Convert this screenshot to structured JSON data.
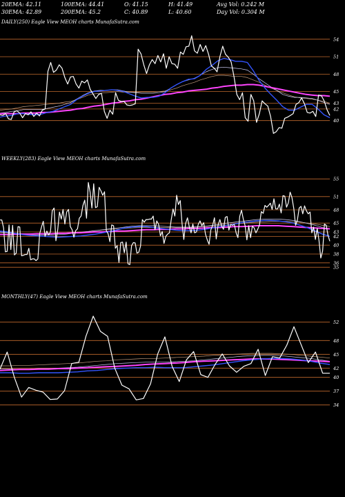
{
  "header": {
    "line1": [
      {
        "label": "20EMA: 42.11"
      },
      {
        "label": "100EMA: 44.41"
      },
      {
        "label": "O: 41.15"
      },
      {
        "label": "H: 41.49"
      },
      {
        "label": "Avg Vol: 0.242  M"
      }
    ],
    "line2": [
      {
        "label": "30EMA: 42.89"
      },
      {
        "label": "200EMA: 45.2"
      },
      {
        "label": "C: 40.89"
      },
      {
        "label": "L: 40.60"
      },
      {
        "label": "Day Vol: 0.304  M"
      }
    ]
  },
  "colors": {
    "background": "#000000",
    "price": "#ffffff",
    "ema_fast": "#3355ff",
    "ema_mid": "#d4d4ff",
    "ema_slow": "#c8a080",
    "ema_long": "#ff44ff",
    "gridline": "#c26a2e"
  },
  "chart_data": [
    {
      "type": "line",
      "title": "DAILY(250) Eagle  View  MEOH charts MunafaSutra.com",
      "ylim": [
        37,
        56
      ],
      "yticks": [
        54,
        51,
        48,
        45,
        43,
        42,
        40
      ],
      "series": [
        {
          "role": "price",
          "values": [
            41.0,
            40.9,
            41.2,
            40.3,
            40.2,
            41.5,
            41.7,
            41.3,
            40.5,
            41.2,
            41.0,
            41.5,
            40.7,
            41.3,
            40.8,
            41.8,
            42.0,
            48.5,
            50.0,
            48.3,
            48.7,
            49.6,
            49.0,
            47.4,
            46.3,
            47.5,
            47.6,
            46.3,
            45.6,
            46.8,
            46.5,
            47.0,
            45.4,
            44.6,
            43.8,
            44.5,
            44.7,
            41.6,
            40.4,
            41.8,
            41.1,
            44.8,
            43.5,
            43.3,
            43.3,
            42.7,
            42.6,
            42.7,
            42.9,
            52.3,
            51.5,
            49.6,
            48.1,
            49.6,
            50.5,
            49.8,
            51.2,
            50.1,
            51.5,
            49.0,
            51.0,
            49.8,
            49.7,
            49.0,
            51.8,
            51.4,
            52.7,
            52.8,
            54.6,
            52.0,
            51.6,
            53.1,
            51.9,
            52.9,
            51.4,
            49.4,
            49.0,
            48.4,
            51.0,
            52.8,
            51.4,
            50.9,
            50.1,
            47.6,
            44.5,
            43.6,
            44.8,
            40.5,
            39.9,
            44.5,
            43.4,
            39.7,
            41.2,
            43.4,
            42.9,
            42.5,
            40.7,
            37.8,
            38.1,
            38.8,
            38.7,
            40.4,
            40.6,
            40.9,
            41.2,
            42.8,
            43.1,
            43.9,
            42.9,
            41.4,
            41.3,
            41.6,
            40.7,
            44.4,
            44.3,
            43.4,
            41.9,
            40.9
          ]
        },
        {
          "role": "ema_fast",
          "values": [
            40.6,
            40.8,
            40.9,
            41.2,
            41.2,
            41.1,
            41.0,
            41.1,
            41.4,
            41.6,
            42.0,
            42.4,
            42.8,
            43.6,
            44.2,
            44.7,
            45.0,
            45.1,
            45.2,
            45.3,
            45.2,
            45.0,
            44.6,
            44.2,
            43.9,
            44.0,
            44.0,
            44.2,
            44.8,
            45.6,
            46.2,
            46.7,
            47.1,
            47.2,
            47.8,
            48.8,
            49.5,
            50.3,
            50.7,
            50.5,
            50.2,
            50.2,
            50.0,
            48.6,
            46.9,
            45.6,
            44.5,
            43.5,
            42.4,
            41.8,
            41.8,
            42.3,
            42.8,
            42.8,
            42.0,
            41.0,
            40.5
          ]
        },
        {
          "role": "ema_mid",
          "values": [
            41.3,
            41.4,
            41.6,
            41.7,
            41.9,
            41.9,
            41.9,
            41.9,
            42.1,
            42.3,
            42.5,
            42.8,
            43.1,
            43.7,
            44.3,
            44.8,
            45.1,
            45.2,
            45.2,
            45.3,
            45.3,
            45.1,
            44.9,
            44.8,
            44.7,
            44.7,
            44.7,
            44.8,
            45.0,
            45.6,
            46.2,
            46.7,
            47.0,
            47.3,
            47.8,
            48.4,
            48.8,
            49.1,
            49.2,
            49.1,
            49.0,
            48.9,
            48.7,
            48.0,
            47.2,
            46.5,
            45.8,
            45.2,
            44.5,
            44.2,
            44.0,
            44.0,
            43.9,
            43.8,
            43.5,
            43.1,
            42.8
          ]
        },
        {
          "role": "ema_slow",
          "values": [
            41.8,
            41.9,
            42.0,
            42.2,
            42.4,
            42.5,
            42.6,
            42.7,
            42.8,
            42.9,
            43.0,
            43.2,
            43.3,
            43.6,
            44.0,
            44.4,
            44.6,
            44.7,
            44.8,
            44.9,
            45.0,
            44.9,
            44.9,
            44.9,
            44.9,
            44.9,
            44.9,
            45.0,
            45.1,
            45.3,
            45.6,
            46.0,
            46.3,
            46.6,
            47.0,
            47.3,
            47.6,
            47.8,
            47.8,
            47.7,
            47.6,
            47.6,
            47.4,
            47.0,
            46.6,
            46.1,
            45.6,
            45.2,
            44.8,
            44.4,
            44.1,
            43.9,
            43.8,
            43.7,
            43.5,
            43.3,
            43.0
          ]
        },
        {
          "role": "ema_long",
          "values": [
            41.2,
            41.2,
            41.2,
            41.2,
            41.3,
            41.3,
            41.3,
            41.4,
            41.4,
            41.5,
            41.6,
            41.7,
            41.8,
            42.0,
            42.1,
            42.3,
            42.5,
            42.6,
            42.8,
            43.0,
            43.1,
            43.3,
            43.4,
            43.6,
            43.7,
            43.9,
            44.1,
            44.3,
            44.5,
            44.6,
            44.8,
            44.9,
            45.1,
            45.2,
            45.3,
            45.4,
            45.6,
            45.7,
            45.9,
            46.0,
            46.1,
            46.1,
            46.2,
            46.2,
            46.1,
            45.9,
            45.7,
            45.5,
            45.3,
            45.1,
            44.9,
            44.7,
            44.5,
            44.4,
            44.3,
            44.3,
            44.2
          ]
        }
      ]
    },
    {
      "type": "line",
      "title": "WEEKLY(283) Eagle  View  MEOH charts MunafaSutra.com",
      "ylim": [
        33,
        58
      ],
      "yticks": [
        55,
        51,
        48,
        45,
        43,
        42,
        40,
        38,
        36,
        35
      ],
      "series": [
        {
          "role": "price",
          "values": [
            45.7,
            45.7,
            43.9,
            38.5,
            38.6,
            44.6,
            39.0,
            44.5,
            37.8,
            38.2,
            44.2,
            44.1,
            37.6,
            37.7,
            37.9,
            37.9,
            39.3,
            36.7,
            36.9,
            36.9,
            36.5,
            36.9,
            42.6,
            44.1,
            45.4,
            42.0,
            43.2,
            42.3,
            43.0,
            47.8,
            48.4,
            41.0,
            43.4,
            47.5,
            45.9,
            48.1,
            44.8,
            47.5,
            48.1,
            44.2,
            43.5,
            41.8,
            43.3,
            43.7,
            46.1,
            46.6,
            49.0,
            50.2,
            46.1,
            54.2,
            52.0,
            48.4,
            53.9,
            48.5,
            48.7,
            53.1,
            52.3,
            51.3,
            52.1,
            43.3,
            42.6,
            40.8,
            44.6,
            44.4,
            39.3,
            39.9,
            36.1,
            40.6,
            40.7,
            38.3,
            40.7,
            35.8,
            35.6,
            39.9,
            40.6,
            40.5,
            38.2,
            38.4,
            39.8,
            45.8,
            45.2,
            45.8,
            45.8,
            45.9,
            45.9,
            46.6,
            43.5,
            45.5,
            44.7,
            42.1,
            43.1,
            40.4,
            42.0,
            42.5,
            42.8,
            45.7,
            48.2,
            46.6,
            51.3,
            49.2,
            50.1,
            45.0,
            41.3,
            44.9,
            46.2,
            44.2,
            42.8,
            44.8,
            42.8,
            43.0,
            44.7,
            45.5,
            44.4,
            45.1,
            42.5,
            41.2,
            40.2,
            43.5,
            44.5,
            46.2,
            41.4,
            44.6,
            45.8,
            44.3,
            43.6,
            46.3,
            46.5,
            43.4,
            44.7,
            44.5,
            44.7,
            42.8,
            41.7,
            46.5,
            47.9,
            45.9,
            44.4,
            41.2,
            44.4,
            41.7,
            44.3,
            43.9,
            42.8,
            43.6,
            44.6,
            47.6,
            47.2,
            49.0,
            48.6,
            49.0,
            49.5,
            48.1,
            50.5,
            48.2,
            48.2,
            49.3,
            47.3,
            51.2,
            51.1,
            48.6,
            49.6,
            52.0,
            50.8,
            48.3,
            44.5,
            45.7,
            48.4,
            48.8,
            47.1,
            48.9,
            47.8,
            47.1,
            47.5,
            42.8,
            44.1,
            41.3,
            43.8,
            41.1,
            37.1,
            38.7,
            44.8,
            44.5,
            42.2,
            40.9
          ]
        },
        {
          "role": "ema_fast",
          "values": [
            43.2,
            43.0,
            42.7,
            42.4,
            42.2,
            42.1,
            42.0,
            41.9,
            41.8,
            41.9,
            42.0,
            42.1,
            42.3,
            42.5,
            42.8,
            43.1,
            43.5,
            43.9,
            44.1,
            44.2,
            44.2,
            44.0,
            43.8,
            43.6,
            43.4,
            43.3,
            43.3,
            43.4,
            43.6,
            43.9,
            44.2,
            44.5,
            44.8,
            45.1,
            45.3,
            45.5,
            45.6,
            45.6,
            45.5,
            45.3,
            45.0,
            44.5,
            43.9,
            43.2,
            42.5,
            42.0
          ]
        },
        {
          "role": "ema_mid",
          "values": [
            43.0,
            42.9,
            42.7,
            42.5,
            42.4,
            42.3,
            42.3,
            42.3,
            42.4,
            42.5,
            42.7,
            42.9,
            43.1,
            43.3,
            43.5,
            43.7,
            43.9,
            44.1,
            44.3,
            44.4,
            44.4,
            44.4,
            44.3,
            44.2,
            44.1,
            44.1,
            44.1,
            44.2,
            44.3,
            44.5,
            44.7,
            45.0,
            45.2,
            45.4,
            45.6,
            45.8,
            45.9,
            45.9,
            45.9,
            45.8,
            45.6,
            45.3,
            44.9,
            44.5,
            44.0,
            43.6
          ]
        },
        {
          "role": "ema_slow",
          "values": [
            42.8,
            42.8,
            42.7,
            42.6,
            42.6,
            42.6,
            42.6,
            42.6,
            42.7,
            42.8,
            42.9,
            43.0,
            43.1,
            43.3,
            43.4,
            43.6,
            43.7,
            43.8,
            43.9,
            44.0,
            44.0,
            44.0,
            44.0,
            44.0,
            44.0,
            44.0,
            44.0,
            44.1,
            44.2,
            44.3,
            44.5,
            44.6,
            44.8,
            44.9,
            45.1,
            45.2,
            45.3,
            45.4,
            45.4,
            45.4,
            45.3,
            45.2,
            45.0,
            44.8,
            44.5,
            44.2
          ]
        },
        {
          "role": "ema_long",
          "values": [
            42.4,
            42.4,
            42.5,
            42.5,
            42.5,
            42.6,
            42.6,
            42.6,
            42.7,
            42.7,
            42.8,
            42.8,
            42.9,
            43.0,
            43.0,
            43.1,
            43.2,
            43.2,
            43.3,
            43.4,
            43.5,
            43.5,
            43.6,
            43.6,
            43.7,
            43.7,
            43.8,
            43.8,
            43.9,
            44.0,
            44.0,
            44.1,
            44.2,
            44.2,
            44.3,
            44.4,
            44.4,
            44.4,
            44.4,
            44.3,
            44.2,
            44.1,
            44.0,
            43.9,
            43.8,
            43.7
          ]
        }
      ]
    },
    {
      "type": "line",
      "title": "MONTHLY(47) Eagle  View  MEOH charts MunafaSutra.com",
      "ylim": [
        32,
        56
      ],
      "yticks": [
        52,
        48,
        45,
        42,
        40,
        37,
        34
      ],
      "series": [
        {
          "role": "price",
          "values": [
            41.8,
            45.5,
            40.0,
            35.7,
            37.8,
            37.2,
            36.8,
            35.2,
            35.3,
            37.1,
            43.0,
            43.3,
            49.0,
            53.3,
            50.0,
            48.9,
            42.0,
            38.3,
            37.5,
            35.1,
            35.4,
            38.6,
            45.1,
            48.8,
            42.4,
            39.1,
            43.8,
            45.6,
            40.6,
            40.0,
            42.8,
            45.1,
            42.5,
            41.1,
            42.4,
            43.0,
            46.1,
            40.4,
            44.5,
            44.2,
            47.0,
            51.0,
            47.1,
            43.2,
            45.5,
            40.9,
            40.9
          ]
        },
        {
          "role": "ema_fast",
          "values": [
            41.0,
            41.0,
            40.9,
            40.9,
            41.0,
            41.0,
            41.0,
            41.1,
            41.2,
            41.4,
            41.5,
            41.7,
            41.9,
            42.0,
            42.1,
            42.1,
            42.2,
            42.1,
            42.1,
            42.1,
            42.3,
            42.5,
            42.7,
            43.0,
            43.3,
            43.6,
            43.8,
            44.0,
            44.1,
            44.1,
            44.0,
            43.8,
            43.5,
            43.1,
            42.8
          ]
        },
        {
          "role": "ema_mid",
          "values": [
            41.8,
            41.8,
            41.8,
            41.8,
            41.9,
            41.9,
            42.0,
            42.1,
            42.2,
            42.4,
            42.6,
            42.8,
            43.0,
            43.1,
            43.2,
            43.3,
            43.3,
            43.3,
            43.4,
            43.5,
            43.6,
            43.8,
            44.0,
            44.2,
            44.4,
            44.6,
            44.7,
            44.8,
            44.8,
            44.7,
            44.5,
            44.3,
            44.1,
            43.8,
            43.5
          ]
        },
        {
          "role": "ema_slow",
          "values": [
            42.5,
            42.5,
            42.6,
            42.6,
            42.7,
            42.8,
            42.9,
            43.0,
            43.1,
            43.3,
            43.5,
            43.6,
            43.8,
            43.9,
            44.0,
            44.1,
            44.1,
            44.2,
            44.3,
            44.4,
            44.5,
            44.6,
            44.8,
            44.9,
            45.0,
            45.1,
            45.2,
            45.2,
            45.2,
            45.1,
            45.0,
            44.8,
            44.6,
            44.4,
            44.2
          ]
        },
        {
          "role": "ema_long",
          "values": [
            41.5,
            41.6,
            41.7,
            41.7,
            41.8,
            41.8,
            41.9,
            41.9,
            42.0,
            42.1,
            42.2,
            42.3,
            42.4,
            42.5,
            42.6,
            42.8,
            42.9,
            43.0,
            43.1,
            43.2,
            43.4,
            43.5,
            43.6,
            43.7,
            43.8,
            43.9,
            44.0,
            44.0,
            44.0,
            43.9,
            43.8,
            43.7,
            43.6,
            43.5,
            43.4
          ]
        }
      ]
    }
  ]
}
